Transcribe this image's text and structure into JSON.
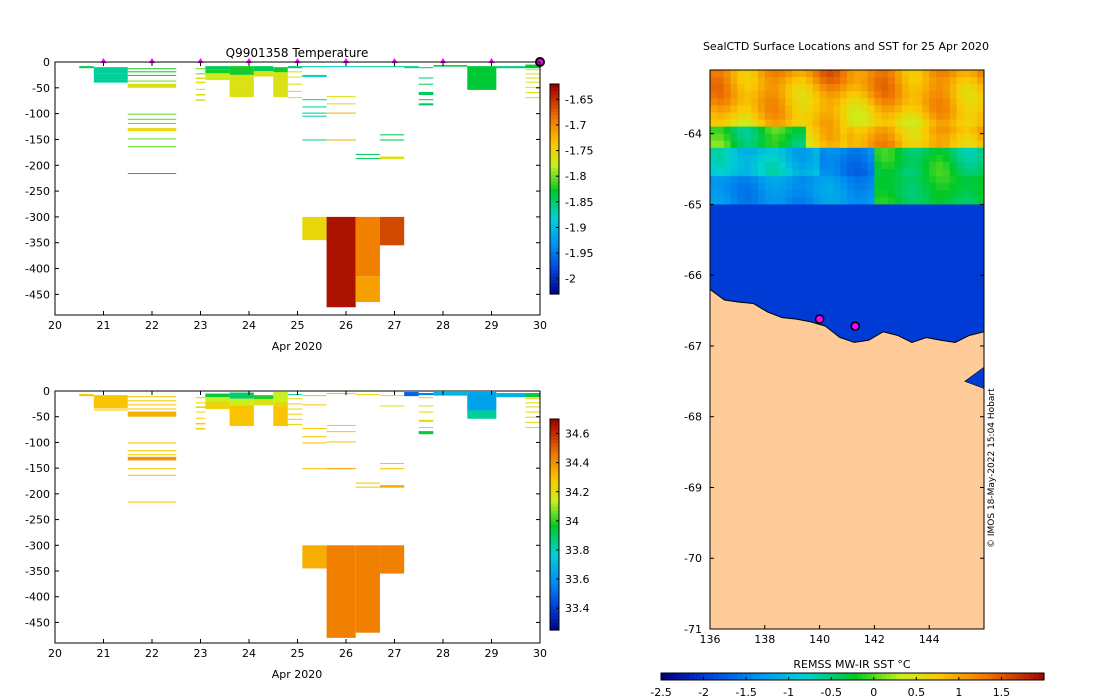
{
  "chart_data": [
    {
      "id": "temperature",
      "type": "heatmap",
      "title": "Q9901358  Temperature",
      "xlabel": "Apr 2020",
      "x_ticks": [
        "20",
        "21",
        "22",
        "23",
        "24",
        "25",
        "26",
        "27",
        "28",
        "29",
        "30"
      ],
      "xlim": [
        20,
        30
      ],
      "y_ticks": [
        "0",
        "-50",
        "-100",
        "-150",
        "-200",
        "-250",
        "-300",
        "-350",
        "-400",
        "-450"
      ],
      "ylim": [
        -490,
        0
      ],
      "colorbar": {
        "ticks": [
          "-1.65",
          "-1.7",
          "-1.75",
          "-1.8",
          "-1.85",
          "-1.9",
          "-1.95",
          "-2"
        ],
        "range": [
          -2.03,
          -1.62
        ]
      },
      "profile_markers_day": [
        21,
        22,
        23,
        24,
        25,
        26,
        27,
        28,
        29,
        30
      ],
      "last_profile_day": 30,
      "cells": [
        [
          20.5,
          20.8,
          -8,
          -12,
          -1.84
        ],
        [
          20.8,
          21.5,
          -10,
          -22,
          -1.86
        ],
        [
          20.8,
          21.5,
          -22,
          -34,
          -1.86
        ],
        [
          20.8,
          21.5,
          -34,
          -40,
          -1.86
        ],
        [
          21.5,
          22.5,
          -12,
          -14,
          -1.82
        ],
        [
          21.5,
          22.5,
          -18,
          -20,
          -1.82
        ],
        [
          21.5,
          22.5,
          -25,
          -27,
          -1.82
        ],
        [
          21.5,
          22.5,
          -36,
          -38,
          -1.8
        ],
        [
          21.5,
          22.5,
          -42,
          -50,
          -1.76
        ],
        [
          21.5,
          22.5,
          -100,
          -102,
          -1.8
        ],
        [
          21.5,
          22.5,
          -110,
          -112,
          -1.8
        ],
        [
          21.5,
          22.5,
          -118,
          -120,
          -1.8
        ],
        [
          21.5,
          22.5,
          -128,
          -134,
          -1.75
        ],
        [
          21.5,
          22.5,
          -148,
          -150,
          -1.8
        ],
        [
          21.5,
          22.5,
          -163,
          -165,
          -1.8
        ],
        [
          21.5,
          22.5,
          -215,
          -217,
          -1.83
        ],
        [
          22.9,
          23.1,
          -12,
          -14,
          -1.8
        ],
        [
          22.9,
          23.1,
          -22,
          -24,
          -1.8
        ],
        [
          22.9,
          23.1,
          -30,
          -33,
          -1.76
        ],
        [
          22.9,
          23.1,
          -38,
          -41,
          -1.76
        ],
        [
          22.9,
          23.1,
          -52,
          -54,
          -1.76
        ],
        [
          22.9,
          23.1,
          -62,
          -65,
          -1.76
        ],
        [
          22.9,
          23.1,
          -72,
          -75,
          -1.76
        ],
        [
          23.1,
          23.6,
          -8,
          -15,
          -1.84
        ],
        [
          23.1,
          23.6,
          -15,
          -22,
          -1.82
        ],
        [
          23.1,
          23.6,
          -22,
          -35,
          -1.77
        ],
        [
          23.6,
          24.1,
          -8,
          -25,
          -1.82
        ],
        [
          23.6,
          24.1,
          -25,
          -35,
          -1.76
        ],
        [
          23.6,
          24.1,
          -35,
          -68,
          -1.76
        ],
        [
          24.1,
          24.5,
          -8,
          -18,
          -1.84
        ],
        [
          24.1,
          24.5,
          -18,
          -28,
          -1.76
        ],
        [
          24.5,
          24.8,
          -10,
          -20,
          -1.82
        ],
        [
          24.5,
          24.8,
          -20,
          -35,
          -1.76
        ],
        [
          24.5,
          24.8,
          -35,
          -68,
          -1.76
        ],
        [
          24.8,
          25.1,
          -8,
          -12,
          -1.85
        ],
        [
          24.8,
          25.1,
          -18,
          -20,
          -1.76
        ],
        [
          24.8,
          25.1,
          -28,
          -30,
          -1.76
        ],
        [
          24.8,
          25.1,
          -42,
          -44,
          -1.76
        ],
        [
          24.8,
          25.1,
          -56,
          -58,
          -1.76
        ],
        [
          24.8,
          25.1,
          -68,
          -70,
          -1.76
        ],
        [
          25.1,
          25.6,
          -8,
          -10,
          -1.86
        ],
        [
          25.1,
          25.6,
          -25,
          -29,
          -1.88
        ],
        [
          25.1,
          25.6,
          -72,
          -74,
          -1.86
        ],
        [
          25.1,
          25.6,
          -86,
          -88,
          -1.86
        ],
        [
          25.1,
          25.6,
          -98,
          -100,
          -1.86
        ],
        [
          25.1,
          25.6,
          -104,
          -106,
          -1.86
        ],
        [
          25.1,
          25.6,
          -150,
          -152,
          -1.86
        ],
        [
          25.1,
          25.6,
          -300,
          -345,
          -1.75
        ],
        [
          25.6,
          26.2,
          -8,
          -10,
          -1.88
        ],
        [
          25.6,
          26.2,
          -66,
          -68,
          -1.76
        ],
        [
          25.6,
          26.2,
          -80,
          -82,
          -1.76
        ],
        [
          25.6,
          26.2,
          -98,
          -100,
          -1.72
        ],
        [
          25.6,
          26.2,
          -150,
          -152,
          -1.72
        ],
        [
          25.6,
          26.2,
          -300,
          -475,
          -1.63
        ],
        [
          26.2,
          26.7,
          -8,
          -10,
          -1.86
        ],
        [
          26.2,
          26.7,
          -178,
          -180,
          -1.84
        ],
        [
          26.2,
          26.7,
          -186,
          -188,
          -1.84
        ],
        [
          26.2,
          26.7,
          -300,
          -415,
          -1.69
        ],
        [
          26.2,
          26.7,
          -415,
          -465,
          -1.71
        ],
        [
          26.7,
          27.2,
          -8,
          -10,
          -1.86
        ],
        [
          26.7,
          27.2,
          -140,
          -142,
          -1.84
        ],
        [
          26.7,
          27.2,
          -150,
          -152,
          -1.84
        ],
        [
          26.7,
          27.2,
          -183,
          -188,
          -1.76
        ],
        [
          26.7,
          27.2,
          -300,
          -355,
          -1.66
        ],
        [
          27.2,
          27.5,
          -8,
          -12,
          -1.86
        ],
        [
          27.5,
          27.8,
          -10,
          -12,
          -1.85
        ],
        [
          27.5,
          27.8,
          -30,
          -32,
          -1.85
        ],
        [
          27.5,
          27.8,
          -42,
          -44,
          -1.85
        ],
        [
          27.5,
          27.8,
          -58,
          -64,
          -1.84
        ],
        [
          27.5,
          27.8,
          -72,
          -74,
          -1.84
        ],
        [
          27.5,
          27.8,
          -80,
          -84,
          -1.84
        ],
        [
          27.8,
          28.5,
          -6,
          -9,
          -1.83
        ],
        [
          28.5,
          29.1,
          -8,
          -54,
          -1.83
        ],
        [
          29.1,
          29.7,
          -8,
          -12,
          -1.85
        ],
        [
          29.7,
          30.0,
          -5,
          -12,
          -1.83
        ],
        [
          29.7,
          30.0,
          -14,
          -16,
          -1.76
        ],
        [
          29.7,
          30.0,
          -22,
          -24,
          -1.76
        ],
        [
          29.7,
          30.0,
          -30,
          -32,
          -1.76
        ],
        [
          29.7,
          30.0,
          -38,
          -40,
          -1.76
        ],
        [
          29.7,
          30.0,
          -48,
          -50,
          -1.76
        ],
        [
          29.7,
          30.0,
          -58,
          -60,
          -1.76
        ],
        [
          29.7,
          30.0,
          -68,
          -70,
          -1.76
        ]
      ]
    },
    {
      "id": "salinity",
      "type": "heatmap",
      "title": "",
      "xlabel": "Apr 2020",
      "x_ticks": [
        "20",
        "21",
        "22",
        "23",
        "24",
        "25",
        "26",
        "27",
        "28",
        "29",
        "30"
      ],
      "xlim": [
        20,
        30
      ],
      "y_ticks": [
        "0",
        "-50",
        "-100",
        "-150",
        "-200",
        "-250",
        "-300",
        "-350",
        "-400",
        "-450"
      ],
      "ylim": [
        -490,
        0
      ],
      "colorbar": {
        "ticks": [
          "34.6",
          "34.4",
          "34.2",
          "34",
          "33.8",
          "33.6",
          "33.4"
        ],
        "range": [
          33.25,
          34.7
        ]
      },
      "cells": [
        [
          20.5,
          20.8,
          -6,
          -10,
          34.3
        ],
        [
          20.8,
          21.5,
          -8,
          -30,
          34.3
        ],
        [
          20.8,
          21.5,
          -30,
          -34,
          34.3
        ],
        [
          20.8,
          21.5,
          -36,
          -38,
          34.3
        ],
        [
          21.5,
          22.5,
          -10,
          -12,
          34.3
        ],
        [
          21.5,
          22.5,
          -18,
          -20,
          34.3
        ],
        [
          21.5,
          22.5,
          -26,
          -28,
          34.3
        ],
        [
          21.5,
          22.5,
          -34,
          -36,
          34.3
        ],
        [
          21.5,
          22.5,
          -40,
          -50,
          34.35
        ],
        [
          21.5,
          22.5,
          -100,
          -102,
          34.3
        ],
        [
          21.5,
          22.5,
          -115,
          -117,
          34.3
        ],
        [
          21.5,
          22.5,
          -123,
          -125,
          34.3
        ],
        [
          21.5,
          22.5,
          -128,
          -135,
          34.4
        ],
        [
          21.5,
          22.5,
          -150,
          -152,
          34.3
        ],
        [
          21.5,
          22.5,
          -163,
          -165,
          34.3
        ],
        [
          21.5,
          22.5,
          -215,
          -217,
          34.3
        ],
        [
          22.9,
          23.1,
          -12,
          -14,
          34.25
        ],
        [
          22.9,
          23.1,
          -22,
          -24,
          34.25
        ],
        [
          22.9,
          23.1,
          -30,
          -33,
          34.25
        ],
        [
          22.9,
          23.1,
          -40,
          -42,
          34.25
        ],
        [
          22.9,
          23.1,
          -52,
          -54,
          34.25
        ],
        [
          22.9,
          23.1,
          -62,
          -65,
          34.25
        ],
        [
          22.9,
          23.1,
          -72,
          -75,
          34.25
        ],
        [
          23.1,
          23.6,
          -5,
          -12,
          33.95
        ],
        [
          23.1,
          23.6,
          -12,
          -20,
          34.15
        ],
        [
          23.1,
          23.6,
          -20,
          -35,
          34.25
        ],
        [
          23.6,
          24.1,
          -3,
          -15,
          33.9
        ],
        [
          23.6,
          24.1,
          -15,
          -28,
          34.15
        ],
        [
          23.6,
          24.1,
          -28,
          -68,
          34.3
        ],
        [
          24.1,
          24.5,
          -8,
          -16,
          34.0
        ],
        [
          24.1,
          24.5,
          -16,
          -28,
          34.2
        ],
        [
          24.5,
          24.8,
          -2,
          -20,
          34.15
        ],
        [
          24.5,
          24.8,
          -20,
          -30,
          34.25
        ],
        [
          24.5,
          24.8,
          -30,
          -68,
          34.3
        ],
        [
          24.8,
          25.1,
          -6,
          -8,
          33.85
        ],
        [
          24.8,
          25.1,
          -14,
          -16,
          34.25
        ],
        [
          24.8,
          25.1,
          -24,
          -26,
          34.25
        ],
        [
          24.8,
          25.1,
          -34,
          -36,
          34.25
        ],
        [
          24.8,
          25.1,
          -44,
          -46,
          34.25
        ],
        [
          24.8,
          25.1,
          -54,
          -56,
          34.25
        ],
        [
          24.8,
          25.1,
          -64,
          -66,
          34.25
        ],
        [
          25.1,
          25.6,
          -8,
          -10,
          34.3
        ],
        [
          25.1,
          25.6,
          -26,
          -28,
          34.3
        ],
        [
          25.1,
          25.6,
          -72,
          -74,
          34.3
        ],
        [
          25.1,
          25.6,
          -88,
          -90,
          34.3
        ],
        [
          25.1,
          25.6,
          -100,
          -102,
          34.3
        ],
        [
          25.1,
          25.6,
          -150,
          -152,
          34.3
        ],
        [
          25.1,
          25.6,
          -300,
          -345,
          34.35
        ],
        [
          25.6,
          26.2,
          -4,
          -6,
          34.3
        ],
        [
          25.6,
          26.2,
          -66,
          -68,
          34.3
        ],
        [
          25.6,
          26.2,
          -78,
          -80,
          34.3
        ],
        [
          25.6,
          26.2,
          -98,
          -100,
          34.3
        ],
        [
          25.6,
          26.2,
          -150,
          -152,
          34.4
        ],
        [
          25.6,
          26.2,
          -300,
          -480,
          34.45
        ],
        [
          26.2,
          26.7,
          -6,
          -8,
          34.25
        ],
        [
          26.2,
          26.7,
          -178,
          -180,
          34.3
        ],
        [
          26.2,
          26.7,
          -186,
          -188,
          34.3
        ],
        [
          26.2,
          26.7,
          -300,
          -470,
          34.45
        ],
        [
          26.7,
          27.2,
          -8,
          -10,
          34.2
        ],
        [
          26.7,
          27.2,
          -28,
          -30,
          34.2
        ],
        [
          26.7,
          27.2,
          -140,
          -142,
          34.3
        ],
        [
          26.7,
          27.2,
          -150,
          -152,
          34.3
        ],
        [
          26.7,
          27.2,
          -183,
          -188,
          34.35
        ],
        [
          26.7,
          27.2,
          -300,
          -355,
          34.45
        ],
        [
          27.2,
          27.5,
          -2,
          -10,
          33.5
        ],
        [
          27.5,
          27.8,
          -4,
          -8,
          33.55
        ],
        [
          27.5,
          27.8,
          -12,
          -14,
          34.25
        ],
        [
          27.5,
          27.8,
          -28,
          -30,
          34.25
        ],
        [
          27.5,
          27.8,
          -40,
          -42,
          34.25
        ],
        [
          27.5,
          27.8,
          -56,
          -60,
          34.25
        ],
        [
          27.5,
          27.8,
          -70,
          -72,
          34.25
        ],
        [
          27.5,
          27.8,
          -78,
          -84,
          33.95
        ],
        [
          27.8,
          28.5,
          -2,
          -9,
          33.7
        ],
        [
          28.5,
          29.1,
          -2,
          -38,
          33.65
        ],
        [
          28.5,
          29.1,
          -38,
          -54,
          33.85
        ],
        [
          29.1,
          29.7,
          -4,
          -12,
          33.7
        ],
        [
          29.7,
          30.0,
          -4,
          -12,
          33.95
        ],
        [
          29.7,
          30.0,
          -14,
          -16,
          34.25
        ],
        [
          29.7,
          30.0,
          -22,
          -24,
          34.25
        ],
        [
          29.7,
          30.0,
          -30,
          -32,
          34.25
        ],
        [
          29.7,
          30.0,
          -40,
          -42,
          34.25
        ],
        [
          29.7,
          30.0,
          -50,
          -52,
          34.25
        ],
        [
          29.7,
          30.0,
          -60,
          -62,
          34.25
        ],
        [
          29.7,
          30.0,
          -70,
          -72,
          34.25
        ]
      ]
    },
    {
      "id": "sst_map",
      "type": "heatmap",
      "title": "SealCTD Surface Locations and SST for 25 Apr 2020",
      "x_ticks": [
        "136",
        "138",
        "140",
        "142",
        "144"
      ],
      "xlim": [
        136,
        146
      ],
      "y_ticks": [
        "-64",
        "-65",
        "-66",
        "-67",
        "-68",
        "-69",
        "-70",
        "-71"
      ],
      "ylim": [
        -71,
        -63.1
      ],
      "colorbar": {
        "label": "REMSS MW-IR SST °C",
        "ticks": [
          "-2.5",
          "-2",
          "-1.5",
          "-1",
          "-0.5",
          "0",
          "0.5",
          "1",
          "1.5"
        ],
        "range": [
          -2.5,
          2.0
        ]
      },
      "land_color": "#ffcc99",
      "coast_lat": [
        -66.2,
        -66.35,
        -66.38,
        -66.4,
        -66.52,
        -66.6,
        -66.62,
        -66.66,
        -66.72,
        -66.88,
        -66.95,
        -66.92,
        -66.8,
        -66.85,
        -66.95,
        -66.88,
        -66.92,
        -66.95,
        -66.85,
        -66.8
      ],
      "seal_positions": [
        [
          140.0,
          -66.62
        ],
        [
          141.3,
          -66.72
        ]
      ],
      "watermark": "© IMOS 18-May-2022 15:04 Hobart"
    }
  ]
}
